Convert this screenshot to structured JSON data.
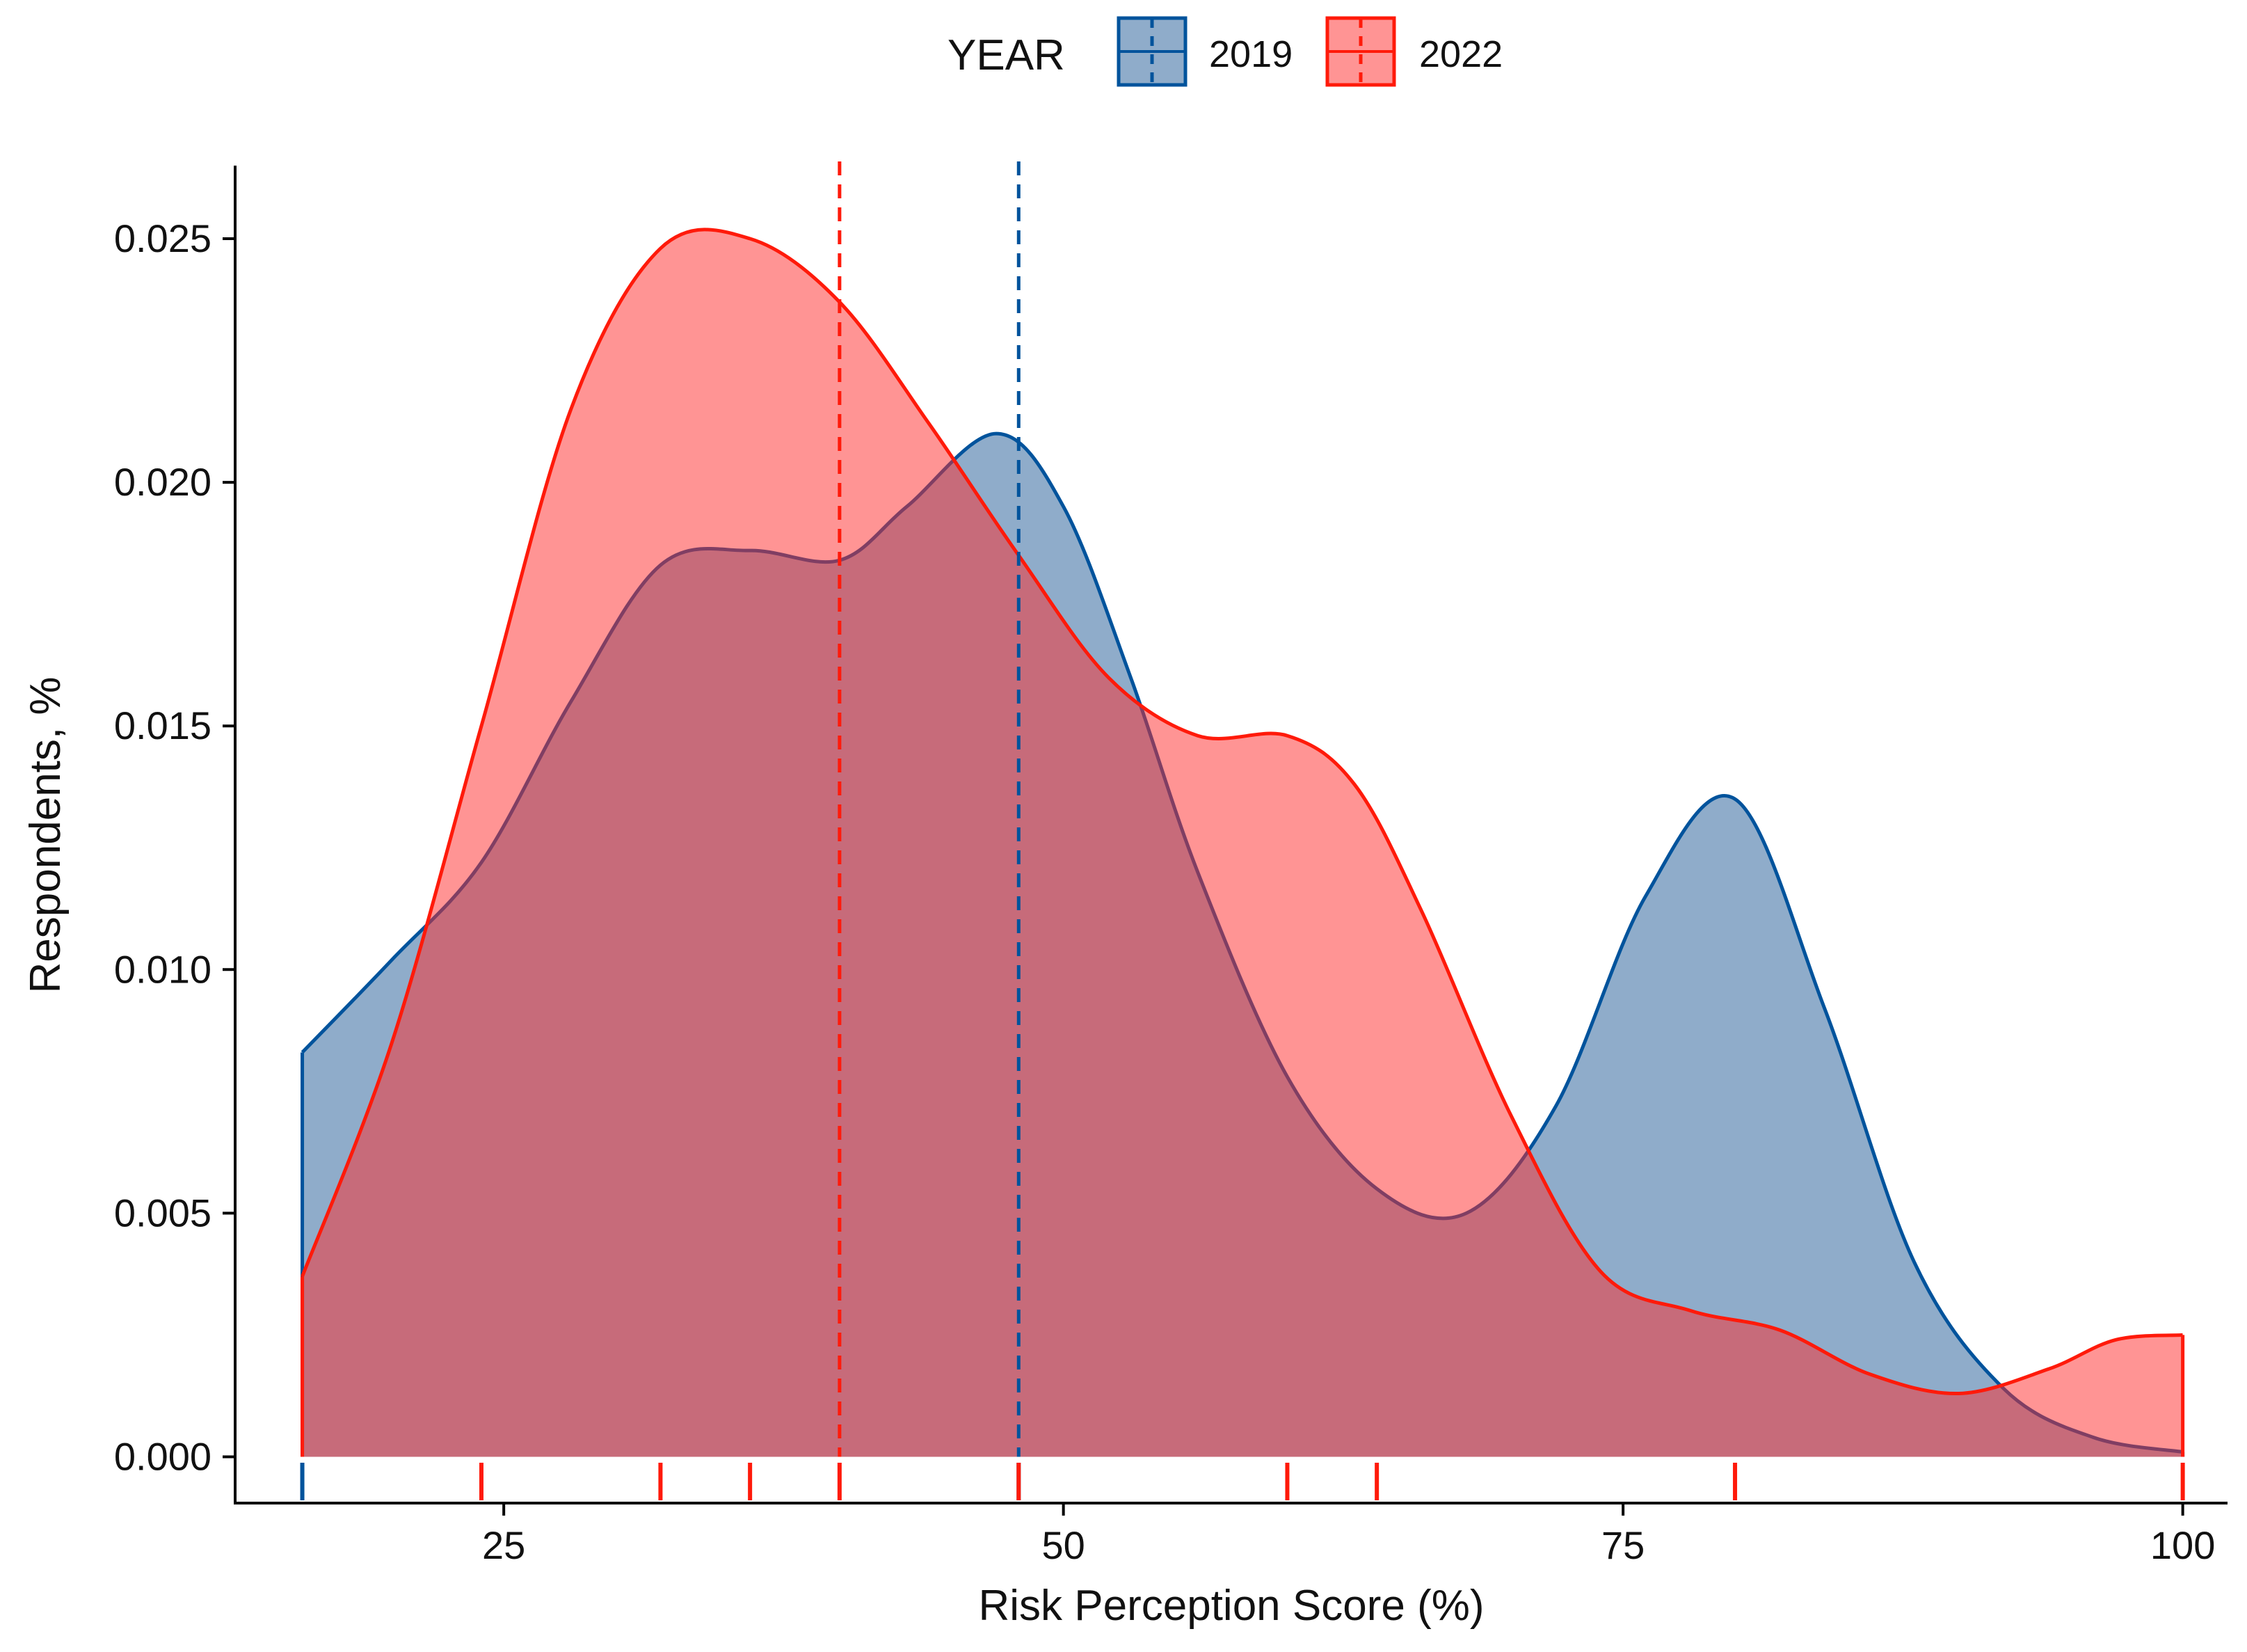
{
  "chart_data": {
    "type": "area",
    "title": "",
    "xlabel": "Risk Perception Score (%)",
    "ylabel": "Respondents, %",
    "xlim": [
      13,
      102
    ],
    "ylim": [
      -0.00095,
      0.0265
    ],
    "x_ticks": [
      25,
      50,
      75,
      100
    ],
    "y_ticks": [
      "0.000",
      "0.005",
      "0.010",
      "0.015",
      "0.020",
      "0.025"
    ],
    "legend": {
      "title": "YEAR",
      "position": "top"
    },
    "series": [
      {
        "name": "2019",
        "color": "#00539C",
        "fill": "#1F5A96",
        "mean": 48,
        "x": [
          16,
          20,
          24,
          28,
          32,
          36,
          40,
          43,
          47,
          50,
          53,
          56,
          60,
          64,
          68,
          72,
          76,
          80,
          84,
          88,
          92,
          96,
          100
        ],
        "y": [
          0.0083,
          0.0102,
          0.0122,
          0.0155,
          0.0183,
          0.0186,
          0.0184,
          0.0195,
          0.021,
          0.0195,
          0.016,
          0.012,
          0.0078,
          0.0055,
          0.005,
          0.0072,
          0.0115,
          0.0135,
          0.0092,
          0.004,
          0.0014,
          0.0004,
          0.0001
        ]
      },
      {
        "name": "2022",
        "color": "#FF1A0A",
        "fill": "#FF2A2A",
        "mean": 40,
        "x": [
          16,
          20,
          24,
          28,
          32,
          36,
          40,
          44,
          48,
          52,
          56,
          60,
          63,
          66,
          70,
          74,
          78,
          82,
          86,
          90,
          94,
          97,
          100
        ],
        "y": [
          0.0037,
          0.0085,
          0.015,
          0.0215,
          0.0248,
          0.025,
          0.0237,
          0.0212,
          0.0185,
          0.016,
          0.0148,
          0.0148,
          0.0138,
          0.0112,
          0.007,
          0.0038,
          0.003,
          0.0026,
          0.0017,
          0.0013,
          0.0018,
          0.0024,
          0.0025
        ]
      }
    ],
    "rug": {
      "2019": [
        16,
        48
      ],
      "2022": [
        24,
        32,
        36,
        40,
        48,
        60,
        64,
        80,
        100
      ]
    }
  }
}
